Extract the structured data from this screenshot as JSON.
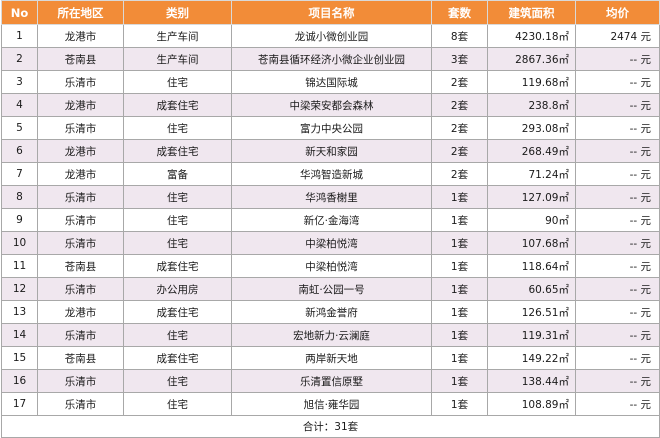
{
  "table": {
    "headers": [
      "No",
      "所在地区",
      "类别",
      "项目名称",
      "套数",
      "建筑面积",
      "均价"
    ],
    "rows": [
      {
        "no": "1",
        "district": "龙港市",
        "category": "生产车间",
        "project": "龙诚小微创业园",
        "units": "8套",
        "area": "4230.18㎡",
        "price": "2474 元"
      },
      {
        "no": "2",
        "district": "苍南县",
        "category": "生产车间",
        "project": "苍南县循环经济小微企业创业园",
        "units": "3套",
        "area": "2867.36㎡",
        "price": "-- 元"
      },
      {
        "no": "3",
        "district": "乐清市",
        "category": "住宅",
        "project": "锦达国际城",
        "units": "2套",
        "area": "119.68㎡",
        "price": "-- 元"
      },
      {
        "no": "4",
        "district": "龙港市",
        "category": "成套住宅",
        "project": "中梁荣安都会森林",
        "units": "2套",
        "area": "238.8㎡",
        "price": "-- 元"
      },
      {
        "no": "5",
        "district": "乐清市",
        "category": "住宅",
        "project": "富力中央公园",
        "units": "2套",
        "area": "293.08㎡",
        "price": "-- 元"
      },
      {
        "no": "6",
        "district": "龙港市",
        "category": "成套住宅",
        "project": "新天和家园",
        "units": "2套",
        "area": "268.49㎡",
        "price": "-- 元"
      },
      {
        "no": "7",
        "district": "龙港市",
        "category": "富备",
        "project": "华鸿智造新城",
        "units": "2套",
        "area": "71.24㎡",
        "price": "-- 元"
      },
      {
        "no": "8",
        "district": "乐清市",
        "category": "住宅",
        "project": "华鸿香榭里",
        "units": "1套",
        "area": "127.09㎡",
        "price": "-- 元"
      },
      {
        "no": "9",
        "district": "乐清市",
        "category": "住宅",
        "project": "新亿·金海湾",
        "units": "1套",
        "area": "90㎡",
        "price": "-- 元"
      },
      {
        "no": "10",
        "district": "乐清市",
        "category": "住宅",
        "project": "中梁柏悦湾",
        "units": "1套",
        "area": "107.68㎡",
        "price": "-- 元"
      },
      {
        "no": "11",
        "district": "苍南县",
        "category": "成套住宅",
        "project": "中梁柏悦湾",
        "units": "1套",
        "area": "118.64㎡",
        "price": "-- 元"
      },
      {
        "no": "12",
        "district": "乐清市",
        "category": "办公用房",
        "project": "南虹·公园一号",
        "units": "1套",
        "area": "60.65㎡",
        "price": "-- 元"
      },
      {
        "no": "13",
        "district": "龙港市",
        "category": "成套住宅",
        "project": "新鸿金誉府",
        "units": "1套",
        "area": "126.51㎡",
        "price": "-- 元"
      },
      {
        "no": "14",
        "district": "乐清市",
        "category": "住宅",
        "project": "宏地新力·云澜庭",
        "units": "1套",
        "area": "119.31㎡",
        "price": "-- 元"
      },
      {
        "no": "15",
        "district": "苍南县",
        "category": "成套住宅",
        "project": "两岸新天地",
        "units": "1套",
        "area": "149.22㎡",
        "price": "-- 元"
      },
      {
        "no": "16",
        "district": "乐清市",
        "category": "住宅",
        "project": "乐清置信原墅",
        "units": "1套",
        "area": "138.44㎡",
        "price": "-- 元"
      },
      {
        "no": "17",
        "district": "乐清市",
        "category": "住宅",
        "project": "旭信·雍华园",
        "units": "1套",
        "area": "108.89㎡",
        "price": "-- 元"
      }
    ],
    "total": "合计：31套"
  },
  "colors": {
    "header_bg": "#f28c38",
    "header_text": "#ffffff",
    "stripe_bg": "#f0e7ef",
    "border": "#a8a8a8"
  }
}
